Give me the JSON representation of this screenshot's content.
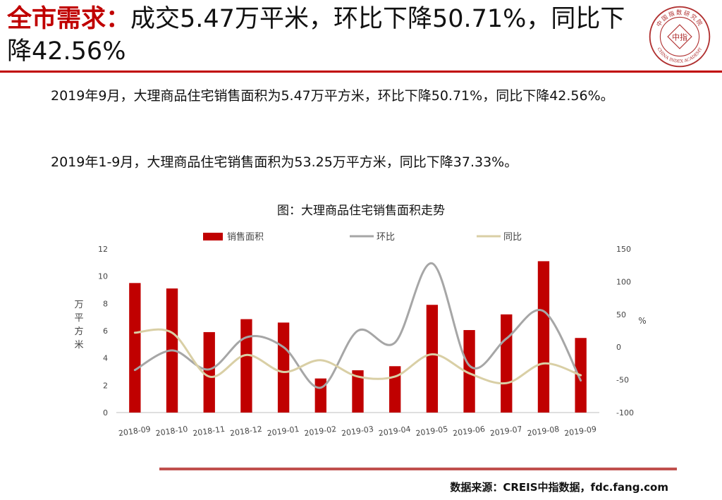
{
  "slide": {
    "title_highlight": "全市需求：",
    "title_rest": "成交5.47万平米，环比下降50.71%，同比下降42.56%",
    "paragraph_1": "2019年9月，大理商品住宅销售面积为5.47万平方米，环比下降50.71%，同比下降42.56%。",
    "paragraph_2": "2019年1-9月，大理商品住宅销售面积为53.25万平方米，同比下降37.33%。",
    "source": "数据来源：CREIS中指数据，fdc.fang.com"
  },
  "logo": {
    "top_text": "中国指数研究院",
    "bottom_text": "CHINA INDEX ACADEMY",
    "center_text": "中指",
    "icon": "seal-logo-icon"
  },
  "colors": {
    "accent": "#c00000",
    "bar": "#c00000",
    "mom_line": "#a6a6a6",
    "yoy_line": "#d9cfa5",
    "footer_rule": "#c0504d"
  },
  "chart_data": {
    "type": "bar",
    "title": "图：大理商品住宅销售面积走势",
    "categories": [
      "2018-09",
      "2018-10",
      "2018-11",
      "2018-12",
      "2019-01",
      "2019-02",
      "2019-03",
      "2019-04",
      "2019-05",
      "2019-06",
      "2019-07",
      "2019-08",
      "2019-09"
    ],
    "series": [
      {
        "name": "销售面积",
        "type": "bar",
        "axis": "left",
        "values": [
          9.5,
          9.1,
          5.9,
          6.85,
          6.6,
          2.5,
          3.1,
          3.4,
          7.9,
          6.05,
          7.2,
          11.1,
          5.47
        ]
      },
      {
        "name": "环比",
        "type": "line",
        "axis": "right",
        "values": [
          -35,
          -5,
          -34,
          15,
          0,
          -62,
          25,
          7,
          128,
          -28,
          13,
          55,
          -51
        ]
      },
      {
        "name": "同比",
        "type": "line",
        "axis": "right",
        "values": [
          22,
          22,
          -45,
          -12,
          -38,
          -20,
          -45,
          -45,
          -11,
          -40,
          -55,
          -25,
          -43
        ]
      }
    ],
    "left_axis": {
      "label": "万平方米",
      "min": 0,
      "max": 12,
      "ticks": [
        0,
        2,
        4,
        6,
        8,
        10,
        12
      ]
    },
    "right_axis": {
      "label": "%",
      "min": -100,
      "max": 150,
      "ticks": [
        -100,
        -50,
        0,
        50,
        100,
        150
      ]
    },
    "grid": false,
    "legend": "top"
  }
}
